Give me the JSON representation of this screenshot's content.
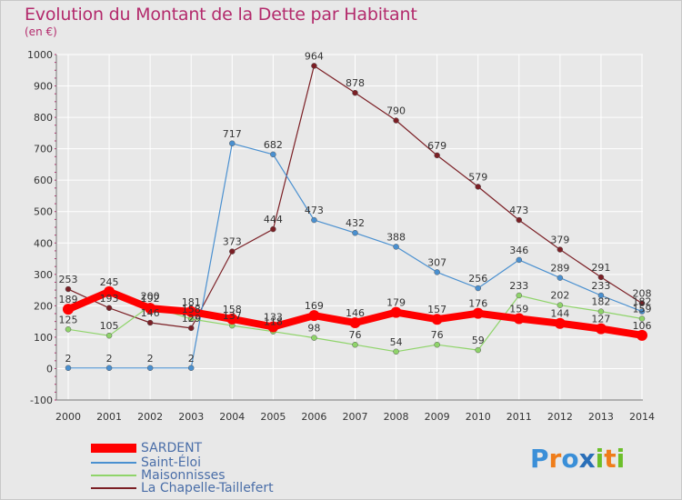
{
  "title": "Evolution du Montant de la Dette par Habitant",
  "unit_label": "(en €)",
  "brand": {
    "letters": [
      "P",
      "r",
      "o",
      "x",
      "i",
      "t",
      "i"
    ],
    "colors": [
      "#3a8fd8",
      "#ef7d1a",
      "#3a8fd8",
      "#2a6fb8",
      "#6cbf2a",
      "#ef7d1a",
      "#6cbf2a"
    ]
  },
  "chart_data": {
    "type": "line",
    "x": [
      2000,
      2001,
      2002,
      2003,
      2004,
      2005,
      2006,
      2007,
      2008,
      2009,
      2010,
      2011,
      2012,
      2013,
      2014
    ],
    "ylim": [
      -100,
      1000
    ],
    "yticks": [
      -100,
      0,
      100,
      200,
      300,
      400,
      500,
      600,
      700,
      800,
      900,
      1000
    ],
    "grid": true,
    "legend_placement": "bottom-left",
    "series": [
      {
        "name": "SARDENT",
        "color": "#ff0000",
        "values": [
          189,
          245,
          192,
          181,
          158,
          133,
          169,
          146,
          179,
          157,
          176,
          159,
          144,
          127,
          106
        ]
      },
      {
        "name": "Saint-Éloi",
        "color": "#4a90d0",
        "values": [
          2,
          2,
          2,
          2,
          717,
          682,
          473,
          432,
          388,
          307,
          256,
          346,
          289,
          233,
          182
        ]
      },
      {
        "name": "Maisonnisses",
        "color": "#8fd46a",
        "values": [
          125,
          105,
          200,
          158,
          137,
          118,
          98,
          76,
          54,
          76,
          59,
          233,
          202,
          182,
          159
        ]
      },
      {
        "name": "La Chapelle-Taillefert",
        "color": "#7b1f25",
        "values": [
          253,
          193,
          146,
          129,
          373,
          444,
          964,
          878,
          790,
          679,
          579,
          473,
          379,
          291,
          208
        ]
      }
    ]
  }
}
